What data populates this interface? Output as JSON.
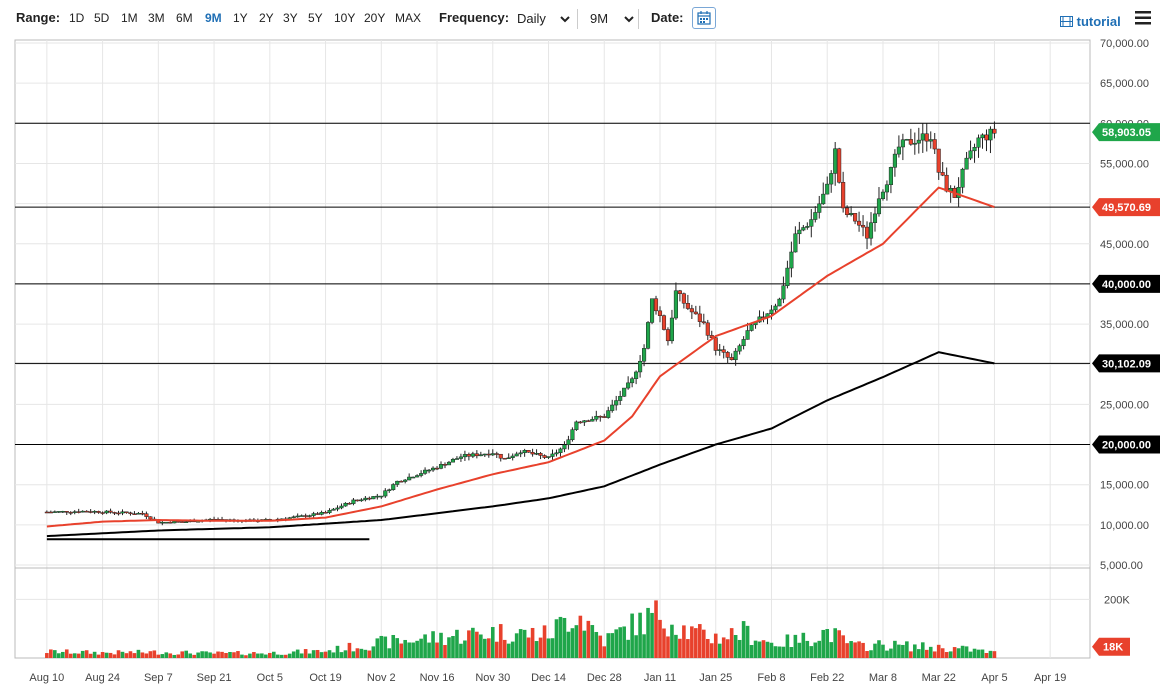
{
  "toolbar": {
    "range_label": "Range:",
    "ranges": [
      "1D",
      "5D",
      "1M",
      "3M",
      "6M",
      "9M",
      "1Y",
      "2Y",
      "3Y",
      "5Y",
      "10Y",
      "20Y",
      "MAX"
    ],
    "active_range": "9M",
    "frequency_label": "Frequency:",
    "frequency_value": "Daily",
    "period_value": "9M",
    "date_label": "Date:",
    "calendar_icon": "calendar-icon",
    "tutorial_label": "tutorial",
    "tutorial_icon": "film-icon",
    "menu_icon": "hamburger-menu-icon"
  },
  "chart_data": {
    "type": "candlestick",
    "price_axis": {
      "ylim": [
        5000,
        70000
      ],
      "ticks": [
        5000,
        10000,
        15000,
        20000,
        25000,
        30000,
        35000,
        40000,
        45000,
        50000,
        55000,
        60000,
        65000,
        70000
      ],
      "tick_labels": [
        "5,000.00",
        "10,000.00",
        "15,000.00",
        "20,000.00",
        "25,000.00",
        "30,000.00",
        "35,000.00",
        "40,000.00",
        "45,000.00",
        "50,000.00",
        "55,000.00",
        "60,000.00",
        "65,000.00",
        "70,000.00"
      ]
    },
    "volume_axis": {
      "ylim": [
        0,
        300000
      ],
      "tick_labels": [
        "200K"
      ],
      "ticks": [
        200000
      ]
    },
    "x_axis": {
      "tick_labels": [
        "Aug 10",
        "Aug 24",
        "Sep 7",
        "Sep 21",
        "Oct 5",
        "Oct 19",
        "Nov 2",
        "Nov 16",
        "Nov 30",
        "Dec 14",
        "Dec 28",
        "Jan 11",
        "Jan 25",
        "Feb 8",
        "Feb 22",
        "Mar 8",
        "Mar 22",
        "Apr 5",
        "Apr 19"
      ],
      "tick_days": [
        0,
        14,
        28,
        42,
        56,
        70,
        84,
        98,
        112,
        126,
        140,
        154,
        168,
        182,
        196,
        210,
        224,
        238,
        252
      ]
    },
    "horizontal_lines": [
      60000,
      49570.69,
      40000,
      30102.09,
      20000
    ],
    "trendline": {
      "from": [
        0,
        8200
      ],
      "to": [
        81,
        8200
      ]
    },
    "labels": {
      "last_price": "58,903.05",
      "ma_fast": "49,570.69",
      "level_40k": "40,000.00",
      "ma_slow": "30,102.09",
      "level_20k": "20,000.00",
      "last_volume": "18K"
    },
    "colors": {
      "up": "#1fa64a",
      "down": "#e8412c",
      "ma_fast": "#e8412c",
      "ma_slow": "#000000",
      "grid": "#e6e6e6"
    },
    "close_keypoints": [
      [
        0,
        11600
      ],
      [
        10,
        11700
      ],
      [
        24,
        11400
      ],
      [
        28,
        10300
      ],
      [
        35,
        10400
      ],
      [
        42,
        10700
      ],
      [
        50,
        10500
      ],
      [
        56,
        10600
      ],
      [
        63,
        11000
      ],
      [
        70,
        11500
      ],
      [
        77,
        13000
      ],
      [
        84,
        13700
      ],
      [
        88,
        15400
      ],
      [
        98,
        17200
      ],
      [
        104,
        18500
      ],
      [
        112,
        19000
      ],
      [
        115,
        18200
      ],
      [
        119,
        19200
      ],
      [
        126,
        18300
      ],
      [
        130,
        19800
      ],
      [
        133,
        22900
      ],
      [
        140,
        23500
      ],
      [
        147,
        28000
      ],
      [
        150,
        32000
      ],
      [
        152,
        38000
      ],
      [
        154,
        36000
      ],
      [
        156,
        33000
      ],
      [
        158,
        39000
      ],
      [
        161,
        37000
      ],
      [
        165,
        35000
      ],
      [
        168,
        32000
      ],
      [
        172,
        30400
      ],
      [
        176,
        34000
      ],
      [
        180,
        36000
      ],
      [
        184,
        38000
      ],
      [
        188,
        46000
      ],
      [
        192,
        48000
      ],
      [
        196,
        52000
      ],
      [
        198,
        56500
      ],
      [
        200,
        49000
      ],
      [
        203,
        48000
      ],
      [
        206,
        46000
      ],
      [
        209,
        51000
      ],
      [
        212,
        54000
      ],
      [
        214,
        57000
      ],
      [
        218,
        58000
      ],
      [
        222,
        58500
      ],
      [
        224,
        54000
      ],
      [
        226,
        52000
      ],
      [
        228,
        51000
      ],
      [
        231,
        55000
      ],
      [
        234,
        58000
      ],
      [
        238,
        58903
      ]
    ],
    "ma_fast_keypoints": [
      [
        0,
        9800
      ],
      [
        14,
        10400
      ],
      [
        28,
        10600
      ],
      [
        42,
        10500
      ],
      [
        56,
        10500
      ],
      [
        70,
        10900
      ],
      [
        84,
        12300
      ],
      [
        98,
        14400
      ],
      [
        112,
        16300
      ],
      [
        126,
        17800
      ],
      [
        140,
        20500
      ],
      [
        147,
        23500
      ],
      [
        154,
        28500
      ],
      [
        168,
        33500
      ],
      [
        182,
        36000
      ],
      [
        196,
        41000
      ],
      [
        210,
        45000
      ],
      [
        224,
        52000
      ],
      [
        238,
        49570.69
      ]
    ],
    "ma_slow_keypoints": [
      [
        0,
        8600
      ],
      [
        28,
        9300
      ],
      [
        56,
        9700
      ],
      [
        84,
        10600
      ],
      [
        112,
        12300
      ],
      [
        126,
        13300
      ],
      [
        140,
        14800
      ],
      [
        154,
        17500
      ],
      [
        168,
        20000
      ],
      [
        182,
        22000
      ],
      [
        196,
        25500
      ],
      [
        210,
        28400
      ],
      [
        224,
        31500
      ],
      [
        238,
        30102.09
      ]
    ],
    "volume_keypoints": [
      [
        0,
        22000
      ],
      [
        14,
        18000
      ],
      [
        28,
        20000
      ],
      [
        42,
        16000
      ],
      [
        56,
        17000
      ],
      [
        70,
        24000
      ],
      [
        84,
        52000
      ],
      [
        98,
        70000
      ],
      [
        112,
        88000
      ],
      [
        126,
        80000
      ],
      [
        133,
        160000
      ],
      [
        140,
        60000
      ],
      [
        147,
        110000
      ],
      [
        154,
        150000
      ],
      [
        161,
        90000
      ],
      [
        168,
        70000
      ],
      [
        175,
        90000
      ],
      [
        182,
        50000
      ],
      [
        189,
        60000
      ],
      [
        196,
        90000
      ],
      [
        203,
        40000
      ],
      [
        210,
        45000
      ],
      [
        217,
        40000
      ],
      [
        224,
        35000
      ],
      [
        231,
        30000
      ],
      [
        238,
        18000
      ]
    ]
  }
}
